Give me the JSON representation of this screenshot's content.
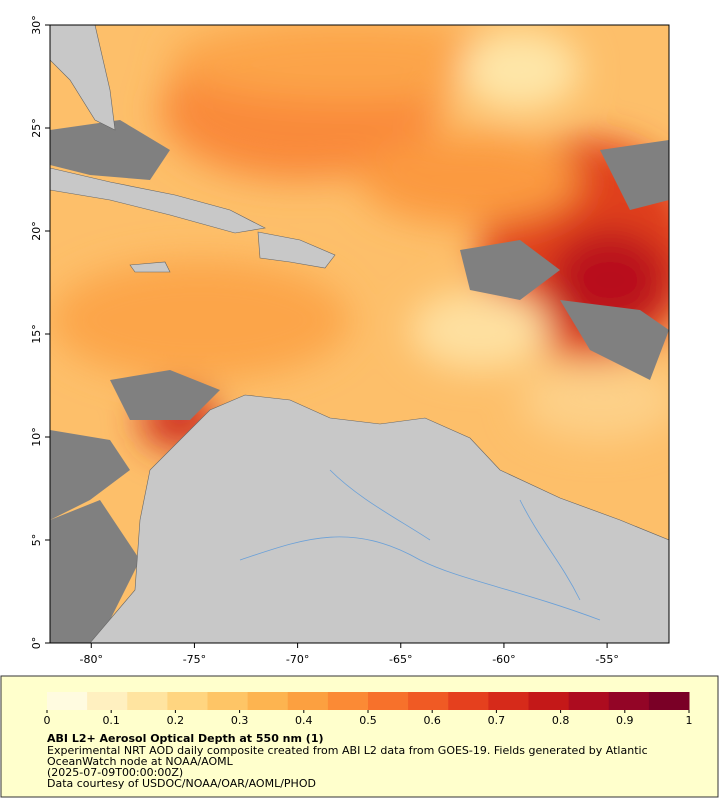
{
  "map": {
    "xaxis": {
      "range": [
        -82,
        -52
      ],
      "ticks": [
        {
          "value": -80,
          "label": "-80°"
        },
        {
          "value": -75,
          "label": "-75°"
        },
        {
          "value": -70,
          "label": "-70°"
        },
        {
          "value": -65,
          "label": "-65°"
        },
        {
          "value": -60,
          "label": "-60°"
        },
        {
          "value": -55,
          "label": "-55°"
        }
      ]
    },
    "yaxis": {
      "range": [
        0,
        30
      ],
      "ticks": [
        {
          "value": 0,
          "label": "0°"
        },
        {
          "value": 5,
          "label": "5°"
        },
        {
          "value": 10,
          "label": "10°"
        },
        {
          "value": 15,
          "label": "15°"
        },
        {
          "value": 20,
          "label": "20°"
        },
        {
          "value": 25,
          "label": "25°"
        },
        {
          "value": 30,
          "label": "30°"
        }
      ]
    }
  },
  "colorbar": {
    "range": [
      0,
      1
    ],
    "ticks": [
      0,
      0.1,
      0.2,
      0.3,
      0.4,
      0.5,
      0.6,
      0.7,
      0.8,
      0.9,
      1
    ],
    "colors": [
      "#fffbe0",
      "#fff0c0",
      "#ffe4a0",
      "#ffd580",
      "#fec566",
      "#fdb450",
      "#fca040",
      "#fb8a35",
      "#f7712b",
      "#f05a24",
      "#e5401e",
      "#d62a1a",
      "#c41818",
      "#ad0c1f",
      "#930526",
      "#7a0026"
    ]
  },
  "caption": {
    "title": "ABI L2+ Aerosol Optical Depth at 550 nm (1)",
    "lines": [
      "Experimental NRT AOD daily composite created from ABI L2 data from GOES-19. Fields generated by Atlantic",
      "OceanWatch node at NOAA/AOML",
      "(2025-07-09T00:00:00Z)",
      "Data courtesy of USDOC/NOAA/OAR/AOML/PHOD"
    ]
  }
}
